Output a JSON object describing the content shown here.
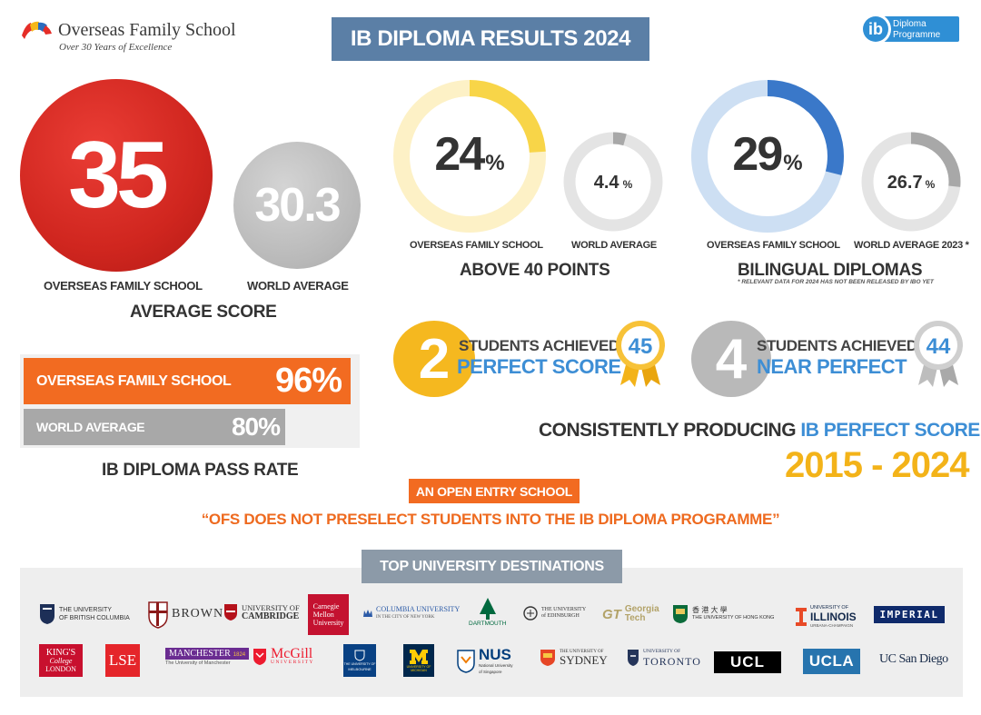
{
  "header": {
    "school_name": "Overseas Family School",
    "school_tagline": "Over 30 Years of Excellence",
    "title": "IB DIPLOMA RESULTS 2024",
    "ib_logo_text": [
      "Diploma",
      "Programme"
    ],
    "ib_letters": "ib"
  },
  "average_score": {
    "ofs_value": "35",
    "world_value": "30.3",
    "ofs_label": "OVERSEAS FAMILY SCHOOL",
    "world_label": "WORLD AVERAGE",
    "caption": "AVERAGE SCORE"
  },
  "above_40": {
    "ofs_value": "24",
    "ofs_percent": 24,
    "world_value": "4.4",
    "world_percent": 4.4,
    "unit": "%",
    "ofs_label": "OVERSEAS FAMILY SCHOOL",
    "world_label": "WORLD AVERAGE",
    "caption": "ABOVE 40 POINTS",
    "accent": "#f8d548"
  },
  "bilingual": {
    "ofs_value": "29",
    "ofs_percent": 29,
    "world_value": "26.7",
    "world_percent": 26.7,
    "unit": "%",
    "ofs_label": "OVERSEAS FAMILY SCHOOL",
    "world_label": "WORLD AVERAGE 2023 *",
    "caption": "BILINGUAL DIPLOMAS",
    "note": "* RELEVANT DATA FOR 2024 HAS NOT BEEN RELEASED BY IBO YET",
    "accent": "#3a78c9"
  },
  "pass_rate": {
    "ofs_label": "OVERSEAS FAMILY SCHOOL",
    "ofs_value": "96%",
    "ofs_percent": 96,
    "world_label": "WORLD AVERAGE",
    "world_value": "80%",
    "world_percent": 80,
    "caption": "IB DIPLOMA PASS RATE"
  },
  "perfect": {
    "count": "2",
    "line1": "STUDENTS ACHIEVED",
    "line2": "PERFECT SCORE",
    "badge": "45"
  },
  "near_perfect": {
    "count": "4",
    "line1": "STUDENTS ACHIEVED",
    "line2": "NEAR PERFECT",
    "badge": "44"
  },
  "consistency": {
    "prefix": "CONSISTENTLY PRODUCING",
    "highlight": "IB PERFECT SCORERS",
    "years": "2015 - 2024"
  },
  "open_entry": {
    "label": "AN OPEN ENTRY SCHOOL",
    "quote": "“OFS DOES NOT PRESELECT STUDENTS INTO THE IB DIPLOMA PROGRAMME”"
  },
  "universities": {
    "title": "TOP UNIVERSITY DESTINATIONS",
    "ubc": [
      "THE UNIVERSITY",
      "OF BRITISH COLUMBIA"
    ],
    "brown": "BROWN",
    "cambridge": [
      "UNIVERSITY OF",
      "CAMBRIDGE"
    ],
    "cmu": [
      "Carnegie",
      "Mellon",
      "University"
    ],
    "columbia": [
      "COLUMBIA UNIVERSITY",
      "IN THE CITY OF NEW YORK"
    ],
    "dartmouth": "DARTMOUTH",
    "edinburgh": [
      "THE UNIVERSITY",
      "of EDINBURGH"
    ],
    "gatech": [
      "Georgia",
      "Tech"
    ],
    "hku": [
      "香 港 大 學",
      "THE UNIVERSITY OF HONG KONG"
    ],
    "illinois": [
      "UNIVERSITY OF",
      "ILLINOIS",
      "URBANA-CHAMPAIGN"
    ],
    "imperial": "IMPERIAL",
    "kings": [
      "KING'S",
      "College",
      "LONDON"
    ],
    "lse": "LSE",
    "manchester": [
      "MANCHESTER",
      "1824",
      "The University of Manchester"
    ],
    "mcgill": [
      "McGill",
      "UNIVERSITY"
    ],
    "melbourne": [
      "THE UNIVERSITY OF",
      "MELBOURNE"
    ],
    "michigan": [
      "UNIVERSITY OF",
      "MICHIGAN"
    ],
    "nus": [
      "NUS",
      "National University",
      "of Singapore"
    ],
    "sydney": [
      "THE UNIVERSITY OF",
      "SYDNEY"
    ],
    "toronto": [
      "UNIVERSITY OF",
      "TORONTO"
    ],
    "ucl": "UCL",
    "ucla": "UCLA",
    "ucsd": "UC San Diego"
  }
}
